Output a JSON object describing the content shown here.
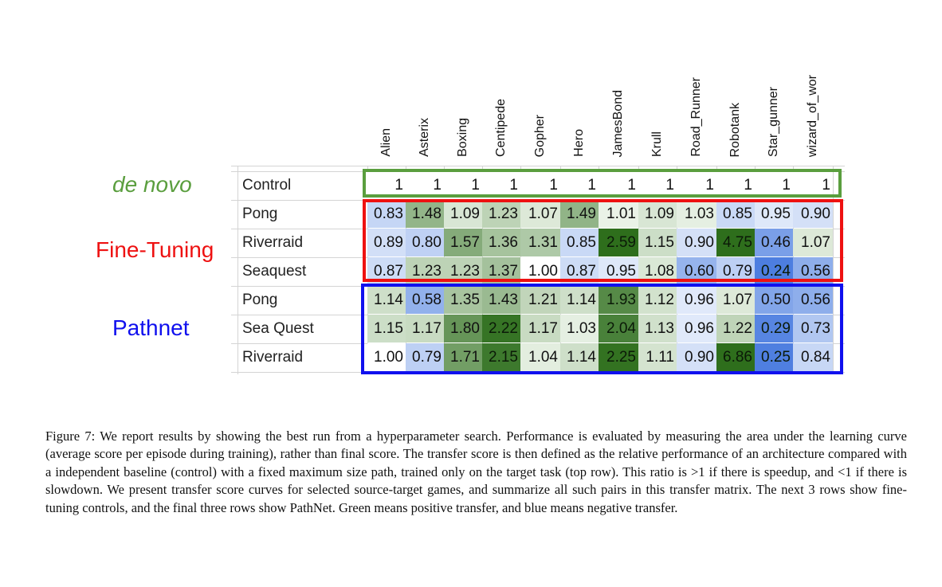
{
  "chart_data": {
    "type": "table",
    "columns": [
      "Alien",
      "Asterix",
      "Boxing",
      "Centipede",
      "Gopher",
      "Hero",
      "JamesBond",
      "Krull",
      "Road_Runner",
      "Robotank",
      "Star_gunner",
      "wizard_of_wor"
    ],
    "groups": [
      {
        "label": "de novo",
        "color": "#5a9e3e",
        "rows": [
          0
        ]
      },
      {
        "label": "Fine-Tuning",
        "color": "#ee1111",
        "rows": [
          1,
          2,
          3
        ]
      },
      {
        "label": "Pathnet",
        "color": "#1010ee",
        "rows": [
          4,
          5,
          6
        ]
      }
    ],
    "rows": [
      {
        "label": "Control",
        "values": [
          "1",
          "1",
          "1",
          "1",
          "1",
          "1",
          "1",
          "1",
          "1",
          "1",
          "1",
          "1"
        ]
      },
      {
        "label": "Pong",
        "values": [
          "0.83",
          "1.48",
          "1.09",
          "1.23",
          "1.07",
          "1.49",
          "1.01",
          "1.09",
          "1.03",
          "0.85",
          "0.95",
          "0.90"
        ]
      },
      {
        "label": "Riverraid",
        "values": [
          "0.89",
          "0.80",
          "1.57",
          "1.36",
          "1.31",
          "0.85",
          "2.59",
          "1.15",
          "0.90",
          "4.75",
          "0.46",
          "1.07"
        ]
      },
      {
        "label": "Seaquest",
        "values": [
          "0.87",
          "1.23",
          "1.23",
          "1.37",
          "1.00",
          "0.87",
          "0.95",
          "1.08",
          "0.60",
          "0.79",
          "0.24",
          "0.56"
        ]
      },
      {
        "label": "Pong",
        "values": [
          "1.14",
          "0.58",
          "1.35",
          "1.43",
          "1.21",
          "1.14",
          "1.93",
          "1.12",
          "0.96",
          "1.07",
          "0.50",
          "0.56"
        ]
      },
      {
        "label": "Sea Quest",
        "values": [
          "1.15",
          "1.17",
          "1.80",
          "2.22",
          "1.17",
          "1.03",
          "2.04",
          "1.13",
          "0.96",
          "1.22",
          "0.29",
          "0.73"
        ]
      },
      {
        "label": "Riverraid",
        "values": [
          "1.00",
          "0.79",
          "1.71",
          "2.15",
          "1.04",
          "1.14",
          "2.25",
          "1.11",
          "0.90",
          "6.86",
          "0.25",
          "0.84"
        ]
      }
    ],
    "color_scale": {
      "positive": "green",
      "negative": "blue",
      "neutral": "white"
    }
  },
  "caption": "Figure 7: We report results by showing the best run from a hyperparameter search. Performance is evaluated by measuring the area under the learning curve (average score per episode during training), rather than final score. The transfer score is then defined as the relative performance of an architecture compared with a independent baseline (control) with a fixed maximum size path, trained only on the target task (top row). This ratio is >1 if there is speedup, and <1 if there is slowdown. We present transfer score curves for selected source-target games, and summarize all such pairs in this transfer matrix. The next 3 rows show fine-tuning controls, and the final three rows show PathNet. Green means positive transfer, and blue means negative transfer."
}
